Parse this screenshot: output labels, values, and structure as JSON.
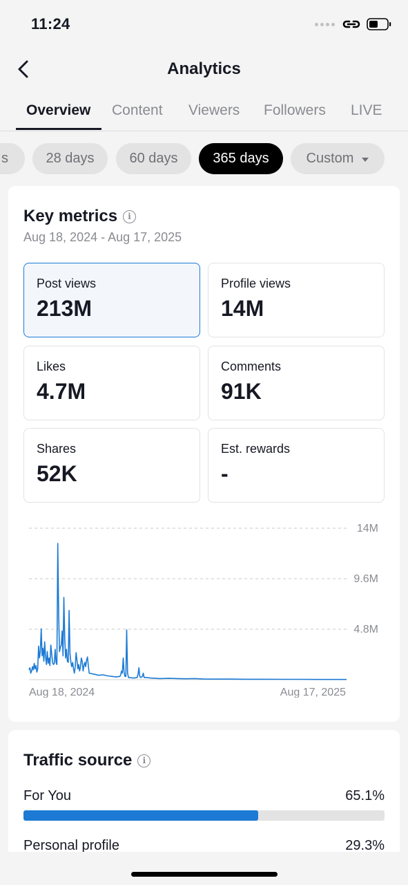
{
  "status": {
    "time": "11:24"
  },
  "header": {
    "title": "Analytics"
  },
  "tabs": [
    {
      "label": "Overview",
      "active": true
    },
    {
      "label": "Content"
    },
    {
      "label": "Viewers"
    },
    {
      "label": "Followers"
    },
    {
      "label": "LIVE"
    }
  ],
  "date_chips": [
    {
      "label": "s",
      "partial": true
    },
    {
      "label": "28 days"
    },
    {
      "label": "60 days"
    },
    {
      "label": "365 days",
      "active": true
    },
    {
      "label": "Custom",
      "dropdown": true
    }
  ],
  "key_metrics": {
    "title": "Key metrics",
    "date_range": "Aug 18, 2024 - Aug 17, 2025",
    "items": [
      {
        "label": "Post views",
        "value": "213M",
        "selected": true
      },
      {
        "label": "Profile views",
        "value": "14M"
      },
      {
        "label": "Likes",
        "value": "4.7M"
      },
      {
        "label": "Comments",
        "value": "91K"
      },
      {
        "label": "Shares",
        "value": "52K"
      },
      {
        "label": "Est. rewards",
        "value": "-"
      }
    ]
  },
  "chart_data": {
    "type": "line",
    "series_color": "#1c7ad4",
    "x_start": "Aug 18, 2024",
    "x_end": "Aug 17, 2025",
    "y_ticks": [
      "14M",
      "9.6M",
      "4.8M"
    ],
    "ylim": [
      0,
      14400000
    ],
    "grid": "dashed-horizontal",
    "x_labels": [
      "Aug 18, 2024",
      "Aug 17, 2025"
    ],
    "points": [
      [
        0,
        0.9
      ],
      [
        1,
        1.1
      ],
      [
        2,
        0.6
      ],
      [
        3,
        0.8
      ],
      [
        4,
        1.2
      ],
      [
        5,
        0.9
      ],
      [
        6,
        1.5
      ],
      [
        7,
        1.0
      ],
      [
        8,
        1.3
      ],
      [
        9,
        0.7
      ],
      [
        10,
        1.0
      ],
      [
        11,
        3.1
      ],
      [
        12,
        2.0
      ],
      [
        13,
        2.6
      ],
      [
        14,
        4.7
      ],
      [
        15,
        2.2
      ],
      [
        16,
        2.9
      ],
      [
        17,
        1.7
      ],
      [
        18,
        3.5
      ],
      [
        19,
        2.1
      ],
      [
        20,
        1.4
      ],
      [
        21,
        2.6
      ],
      [
        22,
        1.5
      ],
      [
        23,
        2.0
      ],
      [
        24,
        1.3
      ],
      [
        25,
        3.2
      ],
      [
        26,
        2.4
      ],
      [
        27,
        1.6
      ],
      [
        28,
        1.4
      ],
      [
        29,
        1.5
      ],
      [
        30,
        2.8
      ],
      [
        31,
        1.6
      ],
      [
        32,
        1.4
      ],
      [
        33,
        12.6
      ],
      [
        34,
        6.0
      ],
      [
        35,
        2.6
      ],
      [
        36,
        3.0
      ],
      [
        37,
        3.2
      ],
      [
        38,
        4.5
      ],
      [
        39,
        2.2
      ],
      [
        40,
        7.6
      ],
      [
        41,
        3.8
      ],
      [
        42,
        2.0
      ],
      [
        43,
        2.8
      ],
      [
        44,
        1.7
      ],
      [
        45,
        1.6
      ],
      [
        46,
        6.4
      ],
      [
        47,
        2.4
      ],
      [
        48,
        1.6
      ],
      [
        49,
        1.2
      ],
      [
        50,
        1.6
      ],
      [
        51,
        1.0
      ],
      [
        52,
        0.6
      ],
      [
        53,
        1.2
      ],
      [
        54,
        2.5
      ],
      [
        55,
        1.8
      ],
      [
        56,
        1.0
      ],
      [
        57,
        1.4
      ],
      [
        58,
        0.8
      ],
      [
        59,
        1.2
      ],
      [
        60,
        2.0
      ],
      [
        61,
        1.7
      ],
      [
        62,
        0.8
      ],
      [
        63,
        1.3
      ],
      [
        64,
        1.6
      ],
      [
        65,
        1.2
      ],
      [
        66,
        1.8
      ],
      [
        67,
        2.1
      ],
      [
        68,
        1.3
      ],
      [
        69,
        0.6
      ],
      [
        75,
        0.5
      ],
      [
        80,
        0.4
      ],
      [
        85,
        0.45
      ],
      [
        90,
        0.35
      ],
      [
        95,
        0.3
      ],
      [
        100,
        0.25
      ],
      [
        104,
        0.3
      ],
      [
        105,
        0.4
      ],
      [
        106,
        0.8
      ],
      [
        107,
        0.6
      ],
      [
        108,
        2.0
      ],
      [
        109,
        0.7
      ],
      [
        110,
        0.3
      ],
      [
        111,
        0.3
      ],
      [
        112,
        4.6
      ],
      [
        113,
        0.6
      ],
      [
        114,
        0.2
      ],
      [
        115,
        0.2
      ],
      [
        120,
        0.15
      ],
      [
        124,
        0.2
      ],
      [
        125,
        0.5
      ],
      [
        126,
        1.1
      ],
      [
        127,
        0.3
      ],
      [
        128,
        0.2
      ],
      [
        130,
        0.3
      ],
      [
        131,
        0.6
      ],
      [
        132,
        0.2
      ],
      [
        135,
        0.2
      ],
      [
        140,
        0.15
      ],
      [
        150,
        0.1
      ],
      [
        160,
        0.12
      ],
      [
        170,
        0.1
      ],
      [
        180,
        0.08
      ],
      [
        190,
        0.1
      ],
      [
        200,
        0.06
      ],
      [
        210,
        0.05
      ],
      [
        230,
        0.05
      ],
      [
        250,
        0.04
      ],
      [
        270,
        0.04
      ],
      [
        290,
        0.03
      ],
      [
        310,
        0.03
      ],
      [
        330,
        0.02
      ],
      [
        345,
        0.02
      ],
      [
        364,
        0.02
      ]
    ],
    "x_max": 364,
    "y_max_display": 14.0
  },
  "traffic_source": {
    "title": "Traffic source",
    "items": [
      {
        "label": "For You",
        "value": "65.1%",
        "percent": 65.1
      },
      {
        "label": "Personal profile",
        "value": "29.3%",
        "percent": 29.3
      }
    ]
  },
  "colors": {
    "accent": "#1c7ad4",
    "text_primary": "#161823",
    "text_secondary": "#8a8b91",
    "background": "#f4f4f4"
  }
}
